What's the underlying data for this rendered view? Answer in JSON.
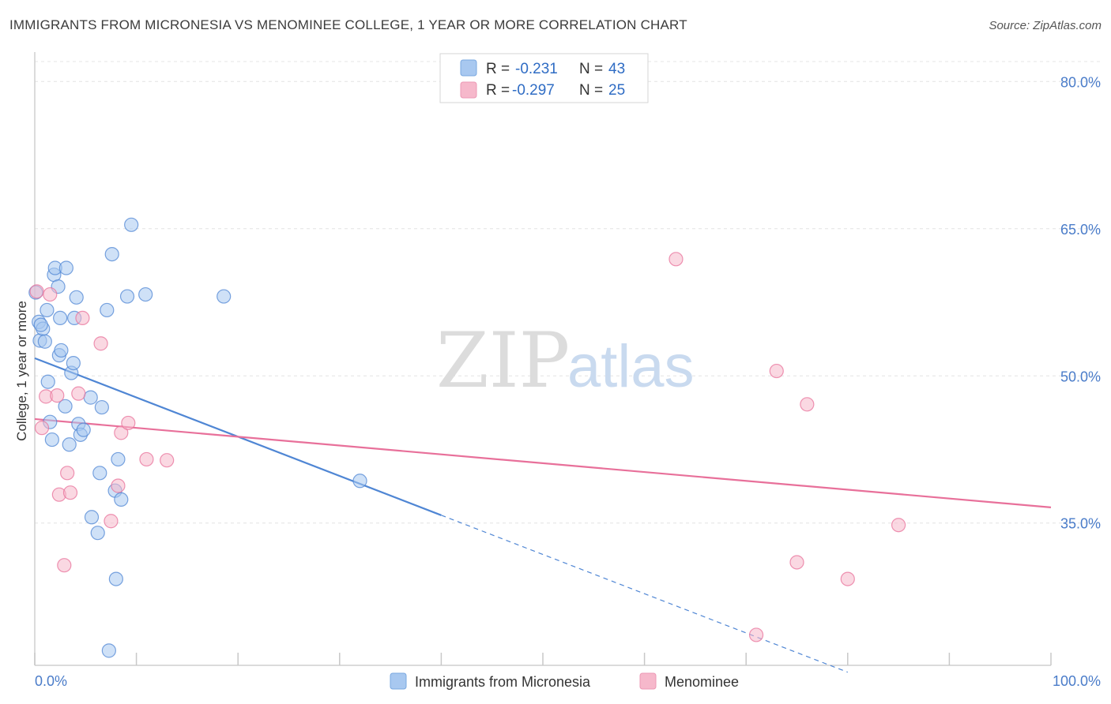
{
  "title": "IMMIGRANTS FROM MICRONESIA VS MENOMINEE COLLEGE, 1 YEAR OR MORE CORRELATION CHART",
  "source": "Source: ZipAtlas.com",
  "watermark": {
    "zip": "ZIP",
    "atlas": "atlas"
  },
  "stats": [
    {
      "r_label": "R =",
      "r_value": "-0.231",
      "n_label": "N =",
      "n_value": "43",
      "color": "#a8c8f0"
    },
    {
      "r_label": "R =",
      "r_value": "-0.297",
      "n_label": "N =",
      "n_value": "25",
      "color": "#f6b8cb"
    }
  ],
  "chart_data": {
    "type": "scatter",
    "title": "IMMIGRANTS FROM MICRONESIA VS MENOMINEE COLLEGE, 1 YEAR OR MORE CORRELATION CHART",
    "xlabel": "",
    "ylabel": "College, 1 year or more",
    "xlim": [
      0,
      100
    ],
    "ylim": [
      20.5,
      83
    ],
    "x_tick_labels": [
      "0.0%",
      "100.0%"
    ],
    "y_ticks": [
      35,
      50,
      65,
      80
    ],
    "y_tick_labels": [
      "35.0%",
      "50.0%",
      "65.0%",
      "80.0%"
    ],
    "grid": true,
    "legend_position": "bottom",
    "series": [
      {
        "name": "Immigrants from Micronesia",
        "color": "#4f86d4",
        "fill": "#a8c8f0",
        "points": [
          [
            0.1,
            58.5
          ],
          [
            0.4,
            55.5
          ],
          [
            0.5,
            53.6
          ],
          [
            0.8,
            54.8
          ],
          [
            1.0,
            53.5
          ],
          [
            1.2,
            56.7
          ],
          [
            1.3,
            49.4
          ],
          [
            1.5,
            45.3
          ],
          [
            1.7,
            43.5
          ],
          [
            1.9,
            60.3
          ],
          [
            2.0,
            61.0
          ],
          [
            2.3,
            59.1
          ],
          [
            2.4,
            52.1
          ],
          [
            2.5,
            55.9
          ],
          [
            2.6,
            52.6
          ],
          [
            3.0,
            46.9
          ],
          [
            3.1,
            61.0
          ],
          [
            3.4,
            43.0
          ],
          [
            3.6,
            50.3
          ],
          [
            3.8,
            51.3
          ],
          [
            3.9,
            55.9
          ],
          [
            4.1,
            58.0
          ],
          [
            4.3,
            45.1
          ],
          [
            4.5,
            44.0
          ],
          [
            4.8,
            44.5
          ],
          [
            5.5,
            47.8
          ],
          [
            5.6,
            35.6
          ],
          [
            6.2,
            34.0
          ],
          [
            6.4,
            40.1
          ],
          [
            6.6,
            46.8
          ],
          [
            7.1,
            56.7
          ],
          [
            7.3,
            22.0
          ],
          [
            7.6,
            62.4
          ],
          [
            7.9,
            38.3
          ],
          [
            8.0,
            29.3
          ],
          [
            8.2,
            41.5
          ],
          [
            8.5,
            37.4
          ],
          [
            9.1,
            58.1
          ],
          [
            9.5,
            65.4
          ],
          [
            10.9,
            58.3
          ],
          [
            18.6,
            58.1
          ],
          [
            32.0,
            39.3
          ],
          [
            0.6,
            55.2
          ]
        ],
        "trend": {
          "x0": 0,
          "y0": 51.8,
          "x1": 40,
          "y1": 35.8,
          "dash_to_x": 80
        }
      },
      {
        "name": "Menominee",
        "color": "#e8709a",
        "fill": "#f6b8cb",
        "points": [
          [
            0.2,
            58.6
          ],
          [
            0.7,
            44.7
          ],
          [
            1.1,
            47.9
          ],
          [
            1.5,
            58.3
          ],
          [
            2.2,
            48.0
          ],
          [
            2.4,
            37.9
          ],
          [
            2.9,
            30.7
          ],
          [
            3.2,
            40.1
          ],
          [
            3.5,
            38.1
          ],
          [
            4.3,
            48.2
          ],
          [
            4.7,
            55.9
          ],
          [
            6.5,
            53.3
          ],
          [
            7.5,
            35.2
          ],
          [
            8.2,
            38.8
          ],
          [
            8.5,
            44.2
          ],
          [
            9.2,
            45.2
          ],
          [
            11.0,
            41.5
          ],
          [
            13.0,
            41.4
          ],
          [
            63.1,
            61.9
          ],
          [
            71.0,
            23.6
          ],
          [
            73.0,
            50.5
          ],
          [
            75.0,
            31.0
          ],
          [
            76.0,
            47.1
          ],
          [
            80.0,
            29.3
          ],
          [
            85.0,
            34.8
          ]
        ],
        "trend": {
          "x0": 0,
          "y0": 45.6,
          "x1": 100,
          "y1": 36.6
        }
      }
    ]
  }
}
